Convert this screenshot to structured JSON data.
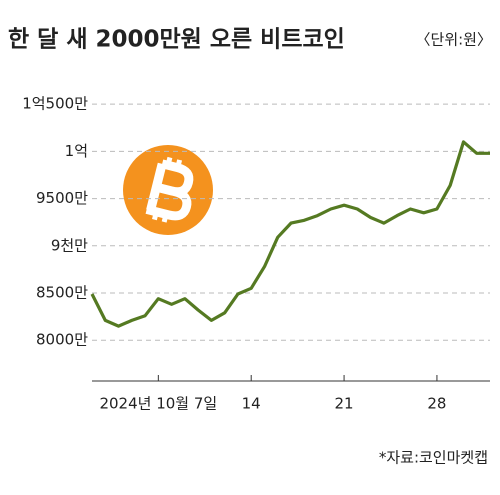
{
  "chart_data": {
    "type": "line",
    "title": "한 달 새 2000만원 오른 비트코인",
    "unit": "〈단위:원〉",
    "source": "*자료:코인마켓캡",
    "categories": [
      null,
      null,
      null,
      null,
      null,
      "2024년 10월 7일",
      null,
      null,
      null,
      null,
      null,
      null,
      "14",
      null,
      null,
      null,
      null,
      null,
      null,
      "21",
      null,
      null,
      null,
      null,
      null,
      null,
      "28",
      null,
      null,
      null,
      null
    ],
    "series": [
      {
        "name": "비트코인",
        "color": "#557a22",
        "values": [
          84900000,
          82100000,
          81500000,
          82100000,
          82600000,
          84400000,
          83800000,
          84400000,
          83200000,
          82100000,
          82900000,
          84900000,
          85500000,
          87800000,
          90900000,
          92400000,
          92700000,
          93200000,
          93900000,
          94300000,
          93900000,
          93000000,
          92400000,
          93200000,
          93900000,
          93500000,
          93900000,
          96400000,
          101000000,
          99800000,
          99800000
        ]
      }
    ],
    "ylim": [
      76000000,
      106500000
    ],
    "yticks": [
      {
        "value": 80000000,
        "label": "8000만"
      },
      {
        "value": 85000000,
        "label": "8500만"
      },
      {
        "value": 90000000,
        "label": "9천만"
      },
      {
        "value": 95000000,
        "label": "9500만"
      },
      {
        "value": 100000000,
        "label": "1억"
      },
      {
        "value": 105000000,
        "label": "1억500만"
      }
    ],
    "grid": true
  }
}
